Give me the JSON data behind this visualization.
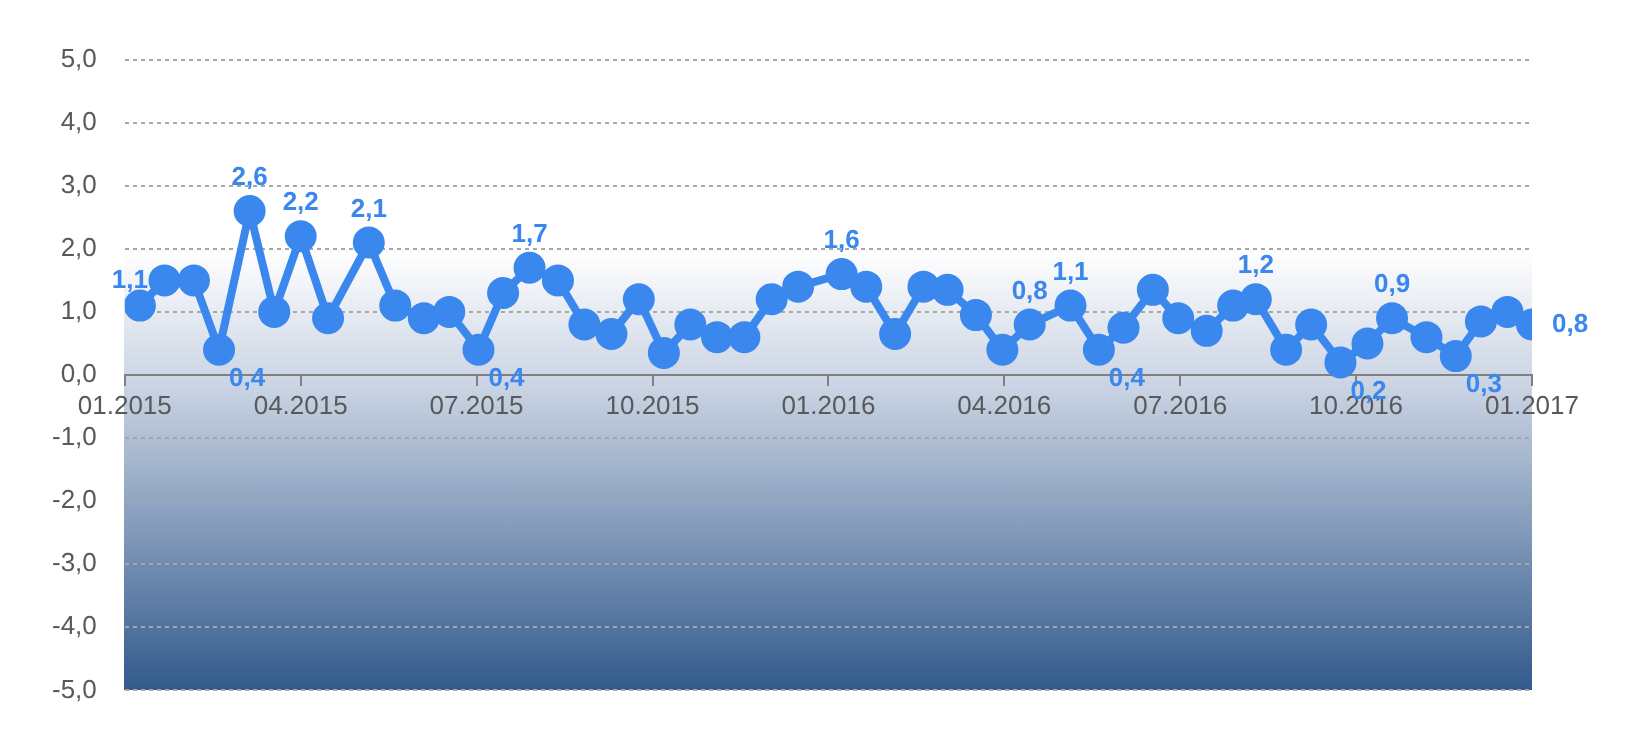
{
  "chart_data": {
    "type": "line",
    "x": [
      "2015-01-09",
      "2015-01-22",
      "2015-02-06",
      "2015-02-18",
      "2015-03-05",
      "2015-03-18",
      "2015-04-01",
      "2015-04-15",
      "2015-05-06",
      "2015-05-20",
      "2015-06-04",
      "2015-06-17",
      "2015-07-02",
      "2015-07-15",
      "2015-07-29",
      "2015-08-13",
      "2015-08-27",
      "2015-09-10",
      "2015-09-24",
      "2015-10-07",
      "2015-10-21",
      "2015-11-04",
      "2015-11-18",
      "2015-12-02",
      "2015-12-16",
      "2016-01-08",
      "2016-01-21",
      "2016-02-05",
      "2016-02-19",
      "2016-03-02",
      "2016-03-17",
      "2016-03-31",
      "2016-04-14",
      "2016-05-05",
      "2016-05-20",
      "2016-06-02",
      "2016-06-17",
      "2016-06-30",
      "2016-07-15",
      "2016-07-29",
      "2016-08-10",
      "2016-08-26",
      "2016-09-08",
      "2016-09-23",
      "2016-10-07",
      "2016-10-20",
      "2016-11-07",
      "2016-11-22",
      "2016-12-05",
      "2016-12-19",
      "2017-01-01"
    ],
    "series": [
      {
        "color": "#3a87ee",
        "values": [
          1.1,
          1.5,
          1.5,
          0.4,
          2.6,
          1.0,
          2.2,
          0.9,
          2.1,
          1.1,
          0.9,
          1.0,
          0.4,
          1.3,
          1.7,
          1.5,
          0.8,
          0.65,
          1.2,
          0.35,
          0.8,
          0.6,
          0.6,
          1.2,
          1.4,
          1.6,
          1.4,
          0.65,
          1.4,
          1.35,
          0.95,
          0.4,
          0.8,
          1.1,
          0.4,
          0.75,
          1.35,
          0.9,
          0.7,
          1.1,
          1.2,
          0.4,
          0.8,
          0.2,
          0.5,
          0.9,
          0.6,
          0.3,
          0.85,
          1.0,
          0.8
        ],
        "value_labels": [
          "1,1",
          null,
          null,
          "0,4",
          "2,6",
          null,
          "2,2",
          null,
          "2,1",
          null,
          null,
          null,
          "0,4",
          null,
          "1,7",
          null,
          null,
          null,
          null,
          null,
          null,
          null,
          null,
          null,
          null,
          "1,6",
          null,
          null,
          null,
          null,
          null,
          null,
          "0,8",
          "1,1",
          "0,4",
          null,
          null,
          null,
          null,
          null,
          "1,2",
          null,
          null,
          "0,2",
          null,
          "0,9",
          null,
          "0,3",
          null,
          null,
          "0,8"
        ]
      }
    ],
    "xlim": [
      "2015-01-01",
      "2017-01-01"
    ],
    "xticks": [
      {
        "value": "2015-01-01",
        "label": "01.2015"
      },
      {
        "value": "2015-04-01",
        "label": "04.2015"
      },
      {
        "value": "2015-07-01",
        "label": "07.2015"
      },
      {
        "value": "2015-10-01",
        "label": "10.2015"
      },
      {
        "value": "2016-01-01",
        "label": "01.2016"
      },
      {
        "value": "2016-04-01",
        "label": "04.2016"
      },
      {
        "value": "2016-07-01",
        "label": "07.2016"
      },
      {
        "value": "2016-10-01",
        "label": "10.2016"
      },
      {
        "value": "2017-01-01",
        "label": "01.2017"
      }
    ],
    "ylim": [
      -5,
      5
    ],
    "yticks": [
      {
        "value": -5,
        "label": "-5,0"
      },
      {
        "value": -4,
        "label": "-4,0"
      },
      {
        "value": -3,
        "label": "-3,0"
      },
      {
        "value": -2,
        "label": "-2,0"
      },
      {
        "value": -1,
        "label": "-1,0"
      },
      {
        "value": 0,
        "label": "0,0"
      },
      {
        "value": 1,
        "label": "1,0"
      },
      {
        "value": 2,
        "label": "2,0"
      },
      {
        "value": 3,
        "label": "3,0"
      },
      {
        "value": 4,
        "label": "4,0"
      },
      {
        "value": 5,
        "label": "5,0"
      }
    ],
    "grid": "y",
    "marker": "circle",
    "line_style": "solid",
    "legend": false
  }
}
